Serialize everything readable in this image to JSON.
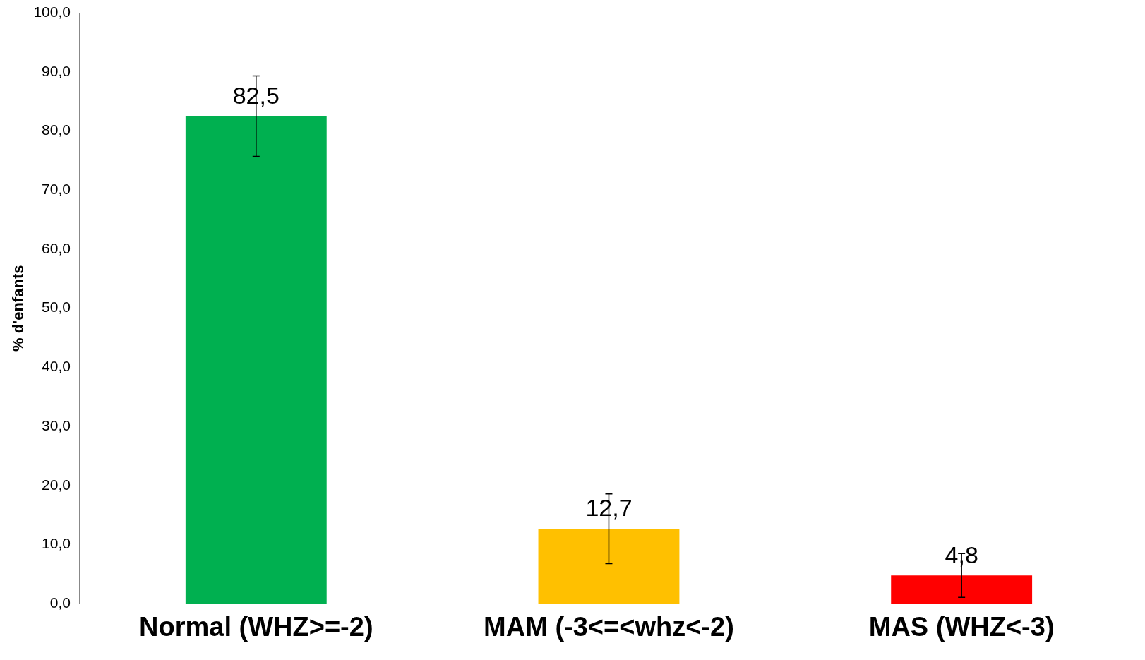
{
  "chart_data": {
    "type": "bar",
    "ylabel": "% d'enfants",
    "categories": [
      "Normal (WHZ>=-2)",
      "MAM (-3<=<whz<-2)",
      "MAS (WHZ<-3)"
    ],
    "values": [
      82.5,
      12.7,
      4.8
    ],
    "colors": [
      "#00b050",
      "#ffc000",
      "#ff0000"
    ],
    "errors": [
      6.8,
      5.9,
      3.7
    ],
    "value_labels": [
      "82,5",
      "12,7",
      "4,8"
    ],
    "ylim": [
      0,
      100
    ],
    "yticks": [
      {
        "value": 0,
        "label": "0,0"
      },
      {
        "value": 10,
        "label": "10,0"
      },
      {
        "value": 20,
        "label": "20,0"
      },
      {
        "value": 30,
        "label": "30,0"
      },
      {
        "value": 40,
        "label": "40,0"
      },
      {
        "value": 50,
        "label": "50,0"
      },
      {
        "value": 60,
        "label": "60,0"
      },
      {
        "value": 70,
        "label": "70,0"
      },
      {
        "value": 80,
        "label": "80,0"
      },
      {
        "value": 90,
        "label": "90,0"
      },
      {
        "value": 100,
        "label": "100,0"
      }
    ],
    "grid": false,
    "legend": false
  }
}
